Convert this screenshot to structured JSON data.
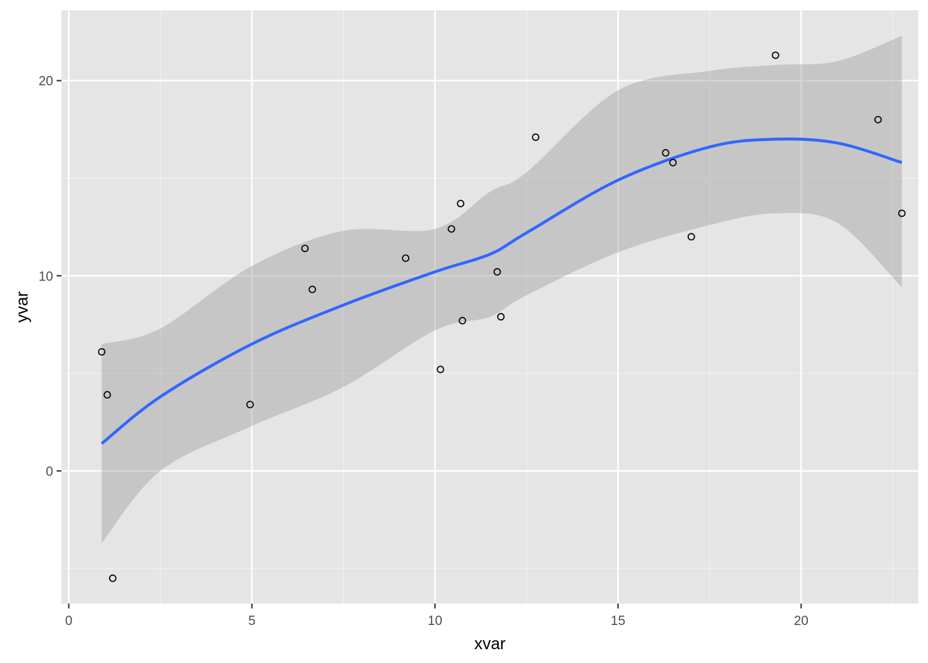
{
  "chart_data": {
    "type": "scatter",
    "title": "",
    "xlabel": "xvar",
    "ylabel": "yvar",
    "xlim": [
      -0.2,
      23.2
    ],
    "ylim": [
      -6.8,
      23.6
    ],
    "x_ticks": [
      0,
      5,
      10,
      15,
      20
    ],
    "y_ticks": [
      0,
      10,
      20
    ],
    "x_tick_labels": [
      "0",
      "5",
      "10",
      "15",
      "20"
    ],
    "y_tick_labels": [
      "0",
      "10",
      "20"
    ],
    "grid": true,
    "background": "#e5e5e5",
    "points": {
      "x": [
        0.9,
        1.05,
        1.2,
        4.95,
        6.45,
        6.65,
        9.2,
        10.15,
        10.45,
        10.7,
        10.75,
        11.7,
        11.8,
        12.75,
        16.3,
        16.5,
        17.0,
        19.3,
        22.1,
        22.75
      ],
      "y": [
        6.1,
        3.9,
        -5.5,
        3.4,
        11.4,
        9.3,
        10.9,
        5.2,
        12.4,
        13.7,
        7.7,
        10.2,
        7.9,
        17.1,
        16.3,
        15.8,
        12.0,
        21.3,
        18.0,
        13.2
      ],
      "stroke": "#000000"
    },
    "smooth": {
      "name": "loess",
      "color": "#3366ff",
      "band_color": "#999999",
      "x": [
        0.9,
        2.5,
        5.0,
        7.5,
        10.0,
        11.5,
        12.5,
        15.0,
        17.5,
        19.3,
        21.0,
        22.75
      ],
      "y": [
        1.4,
        3.8,
        6.5,
        8.5,
        10.2,
        11.1,
        12.2,
        14.9,
        16.6,
        17.0,
        16.8,
        15.8
      ],
      "lower": [
        -3.7,
        0.0,
        2.3,
        4.3,
        7.2,
        7.9,
        9.0,
        11.2,
        12.6,
        13.2,
        12.7,
        9.4
      ],
      "upper": [
        6.5,
        7.3,
        10.5,
        12.3,
        12.4,
        14.3,
        15.3,
        19.5,
        20.5,
        20.8,
        21.0,
        22.3
      ]
    },
    "colors": {
      "panel": "#e5e5e5",
      "grid_major": "#ffffff",
      "grid_minor": "#f2f2f2",
      "tick": "#333333"
    }
  }
}
